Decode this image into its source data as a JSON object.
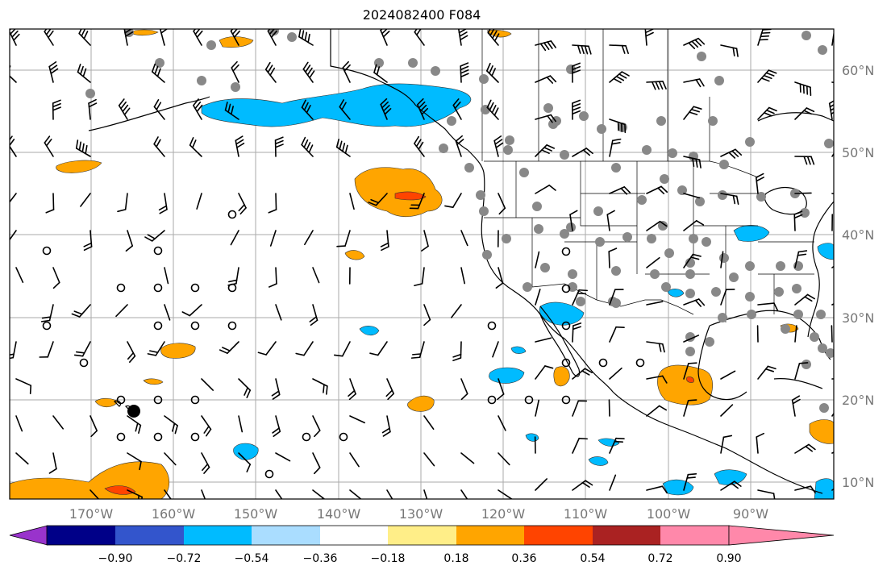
{
  "title": "2024082400 F084",
  "latitude_labels": [
    "60°N",
    "50°N",
    "40°N",
    "30°N",
    "20°N",
    "10°N"
  ],
  "longitude_labels": [
    "170°W",
    "160°W",
    "150°W",
    "140°W",
    "130°W",
    "120°W",
    "110°W",
    "100°W",
    "90°W"
  ],
  "colorbar": {
    "tick_labels": [
      "−0.90",
      "−0.72",
      "−0.54",
      "−0.36",
      "−0.18",
      "0.18",
      "0.36",
      "0.54",
      "0.72",
      "0.90"
    ],
    "colors": [
      "#9933cc",
      "#000088",
      "#3355cc",
      "#00bbff",
      "#aaddff",
      "#ffffff",
      "#ffee88",
      "#ffa500",
      "#ff4400",
      "#aa2222",
      "#ff88aa"
    ]
  },
  "colors": {
    "land_outline": "#000000",
    "gridline": "#aaaaaa",
    "station_dot": "#888888",
    "frame": "#000000"
  }
}
